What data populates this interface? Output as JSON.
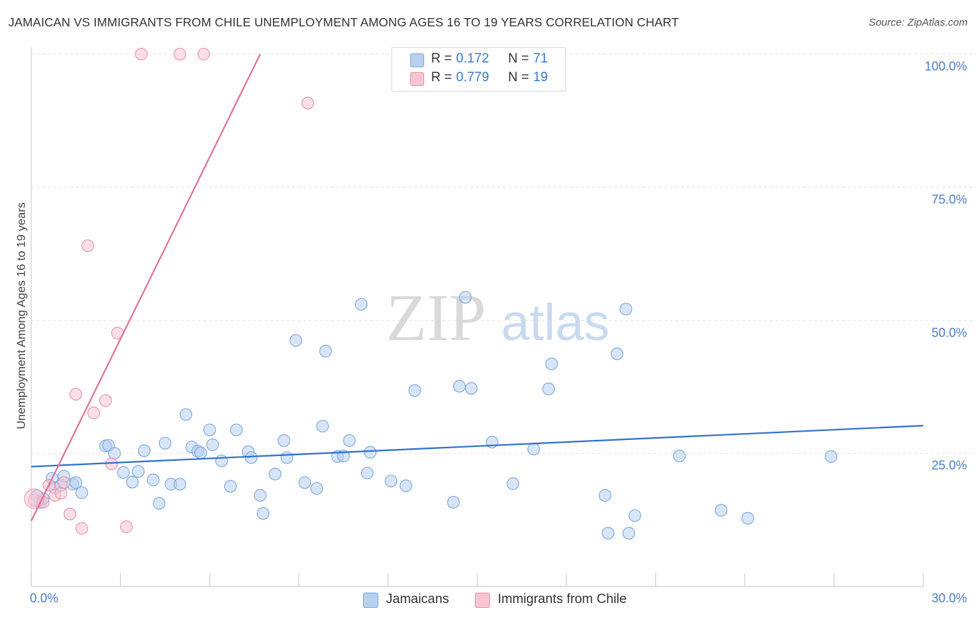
{
  "header": {
    "title": "JAMAICAN VS IMMIGRANTS FROM CHILE UNEMPLOYMENT AMONG AGES 16 TO 19 YEARS CORRELATION CHART",
    "source": "Source: ZipAtlas.com"
  },
  "watermark": {
    "zip": "ZIP",
    "atlas": "atlas"
  },
  "legend_top": {
    "r_label": "R =",
    "n_label": "N =",
    "rows": [
      {
        "r": "0.172",
        "n": "71"
      },
      {
        "r": "0.779",
        "n": "19"
      }
    ]
  },
  "legend_bottom": {
    "items": [
      "Jamaicans",
      "Immigrants from Chile"
    ]
  },
  "colors": {
    "blue_fill": "#b8d0f0",
    "blue_stroke": "#7aa6dd",
    "blue_line": "#2f6fcc",
    "pink_fill": "#f8c4d2",
    "pink_stroke": "#e890ab",
    "pink_line": "#e0709a",
    "tick_text": "#4a7ec8"
  },
  "chart_data": {
    "type": "scatter",
    "title": "JAMAICAN VS IMMIGRANTS FROM CHILE UNEMPLOYMENT AMONG AGES 16 TO 19 YEARS CORRELATION CHART",
    "xlabel": "",
    "ylabel": "Unemployment Among Ages 16 to 19 years",
    "xlim": [
      0,
      30
    ],
    "ylim": [
      0,
      100
    ],
    "x_tick_labels": [
      "0.0%",
      "30.0%"
    ],
    "y_ticks": [
      25,
      50,
      75,
      100
    ],
    "y_tick_labels": [
      "25.0%",
      "50.0%",
      "75.0%",
      "100.0%"
    ],
    "grid": true,
    "legend_position": "top-center",
    "series": [
      {
        "name": "Jamaicans",
        "r": 0.172,
        "n": 71,
        "trend": {
          "x": [
            0,
            30
          ],
          "y": [
            22.5,
            30.2
          ]
        },
        "points": [
          [
            0.3,
            15.8
          ],
          [
            0.4,
            16.5
          ],
          [
            0.7,
            20.3
          ],
          [
            0.8,
            18.5
          ],
          [
            1.0,
            19.0
          ],
          [
            1.1,
            20.7
          ],
          [
            1.4,
            19.2
          ],
          [
            1.5,
            19.5
          ],
          [
            1.7,
            17.6
          ],
          [
            2.5,
            26.4
          ],
          [
            2.6,
            26.5
          ],
          [
            2.8,
            25.0
          ],
          [
            3.1,
            21.4
          ],
          [
            3.4,
            19.6
          ],
          [
            3.6,
            21.6
          ],
          [
            3.8,
            25.5
          ],
          [
            4.1,
            20.0
          ],
          [
            4.3,
            15.6
          ],
          [
            4.5,
            26.9
          ],
          [
            4.7,
            19.2
          ],
          [
            5.0,
            19.2
          ],
          [
            5.2,
            32.3
          ],
          [
            5.4,
            26.2
          ],
          [
            5.6,
            25.4
          ],
          [
            5.7,
            25.1
          ],
          [
            6.0,
            29.4
          ],
          [
            6.1,
            26.6
          ],
          [
            6.4,
            23.6
          ],
          [
            6.7,
            18.8
          ],
          [
            6.9,
            29.4
          ],
          [
            7.3,
            25.3
          ],
          [
            7.4,
            24.2
          ],
          [
            7.7,
            17.1
          ],
          [
            7.8,
            13.7
          ],
          [
            8.2,
            21.1
          ],
          [
            8.5,
            27.4
          ],
          [
            8.6,
            24.2
          ],
          [
            8.9,
            46.2
          ],
          [
            9.2,
            19.5
          ],
          [
            9.6,
            18.4
          ],
          [
            9.9,
            44.2
          ],
          [
            9.8,
            30.1
          ],
          [
            10.3,
            24.4
          ],
          [
            10.5,
            24.5
          ],
          [
            10.7,
            27.4
          ],
          [
            11.1,
            53.0
          ],
          [
            11.3,
            21.3
          ],
          [
            11.4,
            25.2
          ],
          [
            12.1,
            19.8
          ],
          [
            12.6,
            18.9
          ],
          [
            12.9,
            36.8
          ],
          [
            14.2,
            15.8
          ],
          [
            14.4,
            37.6
          ],
          [
            14.6,
            54.3
          ],
          [
            14.8,
            37.2
          ],
          [
            15.5,
            27.1
          ],
          [
            16.2,
            19.3
          ],
          [
            16.9,
            25.8
          ],
          [
            17.4,
            37.1
          ],
          [
            17.5,
            41.8
          ],
          [
            19.3,
            17.1
          ],
          [
            19.4,
            10.0
          ],
          [
            19.7,
            43.7
          ],
          [
            20.0,
            52.1
          ],
          [
            20.1,
            10.0
          ],
          [
            20.3,
            13.3
          ],
          [
            21.8,
            24.5
          ],
          [
            23.2,
            14.3
          ],
          [
            24.1,
            12.8
          ],
          [
            26.9,
            24.4
          ],
          [
            0.2,
            17.0
          ]
        ]
      },
      {
        "name": "Immigrants from Chile",
        "r": 0.779,
        "n": 19,
        "trend": {
          "x": [
            0,
            7.7
          ],
          "y": [
            12.3,
            100
          ]
        },
        "points": [
          [
            0.1,
            16.2
          ],
          [
            0.4,
            15.8
          ],
          [
            0.6,
            19.0
          ],
          [
            0.8,
            17.1
          ],
          [
            1.0,
            17.5
          ],
          [
            1.1,
            19.5
          ],
          [
            1.3,
            13.6
          ],
          [
            1.5,
            36.1
          ],
          [
            1.7,
            10.9
          ],
          [
            1.9,
            64.0
          ],
          [
            2.1,
            32.6
          ],
          [
            2.5,
            34.9
          ],
          [
            2.7,
            23.0
          ],
          [
            2.9,
            47.6
          ],
          [
            3.2,
            11.2
          ],
          [
            3.7,
            100.0
          ],
          [
            5.0,
            100.0
          ],
          [
            5.8,
            100.0
          ],
          [
            9.3,
            90.8
          ]
        ]
      }
    ]
  }
}
